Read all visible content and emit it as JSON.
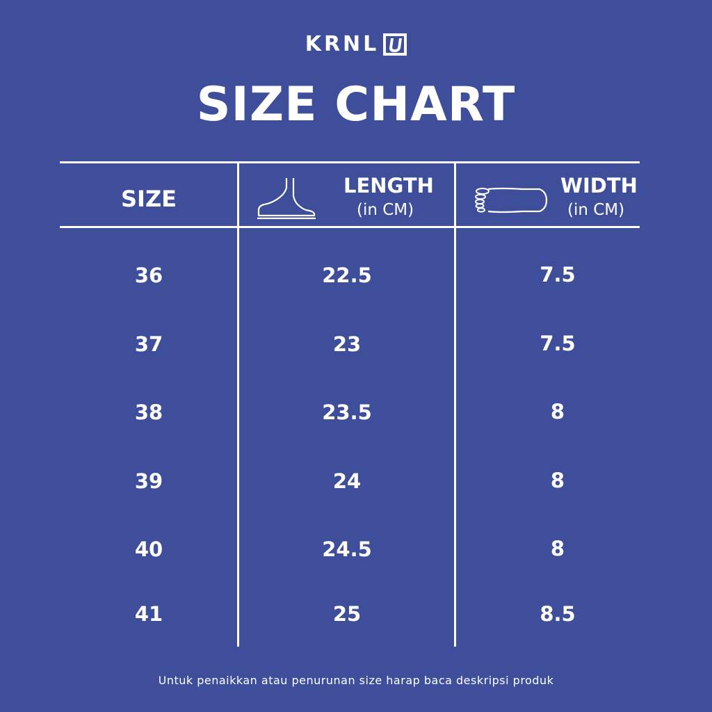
{
  "brand": {
    "name": "KRNL",
    "mark": "U"
  },
  "title": "SIZE CHART",
  "table": {
    "headers": {
      "size": "SIZE",
      "length": {
        "label": "LENGTH",
        "unit": "(in CM)",
        "icon": "foot-side-icon"
      },
      "width": {
        "label": "WIDTH",
        "unit": "(in CM)",
        "icon": "foot-top-icon"
      }
    },
    "rows": [
      {
        "size": "36",
        "length": "22.5",
        "width": "7.5"
      },
      {
        "size": "37",
        "length": "23",
        "width": "7.5"
      },
      {
        "size": "38",
        "length": "23.5",
        "width": "8"
      },
      {
        "size": "39",
        "length": "24",
        "width": "8"
      },
      {
        "size": "40",
        "length": "24.5",
        "width": "8"
      },
      {
        "size": "41",
        "length": "25",
        "width": "8.5"
      }
    ]
  },
  "footnote": "Untuk penaikkan atau penurunan size harap baca deskripsi produk",
  "colors": {
    "background": "#3f4e9a",
    "foreground": "#ffffff"
  }
}
